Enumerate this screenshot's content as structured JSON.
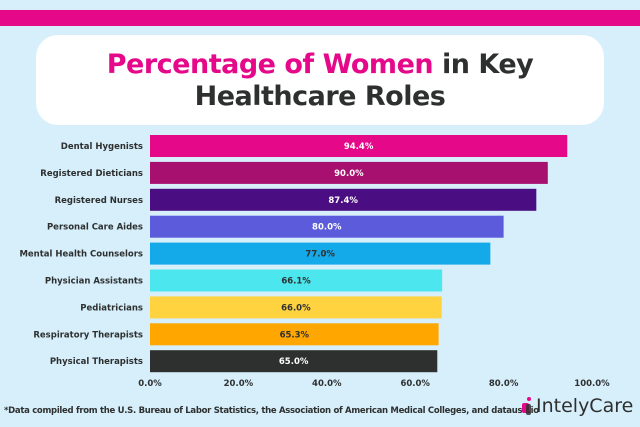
{
  "title": {
    "highlight": "Percentage of Women",
    "rest_line1": " in Key",
    "line2": "Healthcare Roles"
  },
  "chart_data": {
    "type": "bar",
    "orientation": "horizontal",
    "categories": [
      "Dental Hygenists",
      "Registered Dieticians",
      "Registered Nurses",
      "Personal Care Aides",
      "Mental Health Counselors",
      "Physician Assistants",
      "Pediatricians",
      "Respiratory Therapists",
      "Physical Therapists"
    ],
    "values": [
      94.4,
      90.0,
      87.4,
      80.0,
      77.0,
      66.1,
      66.0,
      65.3,
      65.0
    ],
    "data_labels": [
      "94.4%",
      "90.0%",
      "87.4%",
      "80.0%",
      "77.0%",
      "66.1%",
      "66.0%",
      "65.3%",
      "65.0%"
    ],
    "colors": [
      "#e5098a",
      "#a8106f",
      "#4b0d82",
      "#5b5bdb",
      "#14a9e8",
      "#4ce6ee",
      "#ffd23f",
      "#ffa600",
      "#2e3030"
    ],
    "label_colors": [
      "#ffffff",
      "#ffffff",
      "#ffffff",
      "#ffffff",
      "#2e3030",
      "#2e3030",
      "#2e3030",
      "#2e3030",
      "#ffffff"
    ],
    "xlim": [
      0,
      100
    ],
    "xticks": [
      "0.0%",
      "20.0%",
      "40.0%",
      "60.0%",
      "80.0%",
      "100.0%"
    ],
    "grid": false
  },
  "footnote": "*Data compiled from the U.S. Bureau of Labor Statistics, the Association of American Medical Colleges, and datausa.io",
  "logo": "IntelyCare"
}
